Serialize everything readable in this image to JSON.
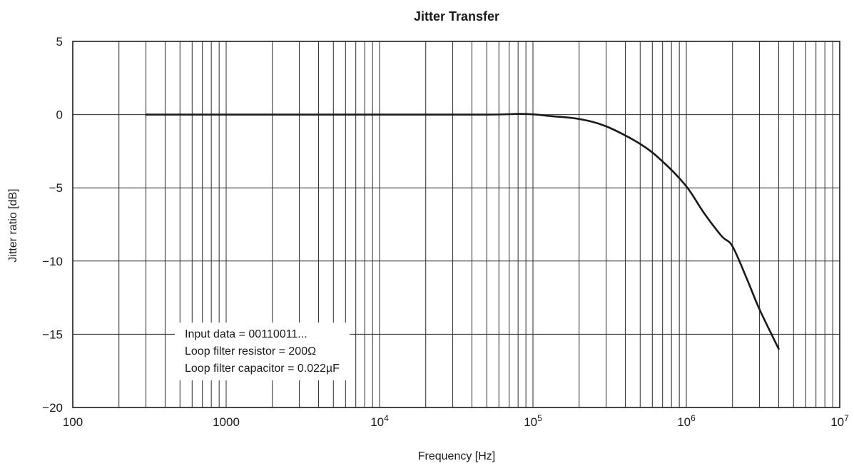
{
  "chart_data": {
    "type": "line",
    "title": "Jitter Transfer",
    "xlabel": "Frequency [Hz]",
    "ylabel": "Jitter ratio [dB]",
    "x_scale": "log",
    "xlim": [
      100,
      10000000
    ],
    "ylim": [
      -20,
      5
    ],
    "grid": true,
    "x_ticks": [
      {
        "value": 100,
        "base": "100",
        "exp": ""
      },
      {
        "value": 1000,
        "base": "1000",
        "exp": ""
      },
      {
        "value": 10000,
        "base": "10",
        "exp": "4"
      },
      {
        "value": 100000,
        "base": "10",
        "exp": "5"
      },
      {
        "value": 1000000,
        "base": "10",
        "exp": "6"
      },
      {
        "value": 10000000,
        "base": "10",
        "exp": "7"
      }
    ],
    "y_ticks": [
      {
        "value": 5,
        "label": "5"
      },
      {
        "value": 0,
        "label": "0"
      },
      {
        "value": -5,
        "label": "−5"
      },
      {
        "value": -10,
        "label": "−10"
      },
      {
        "value": -15,
        "label": "−15"
      },
      {
        "value": -20,
        "label": "−20"
      }
    ],
    "annotation": {
      "lines": [
        "Input data = 00110011...",
        "Loop filter resistor = 200Ω",
        "Loop filter capacitor = 0.022µF"
      ]
    },
    "series": [
      {
        "color": "#1a1a1a",
        "x": [
          300,
          1000,
          10000,
          50000,
          80000,
          100000,
          130000,
          200000,
          300000,
          500000,
          700000,
          1000000,
          1300000,
          1700000,
          2000000,
          2500000,
          3000000,
          4000000
        ],
        "y": [
          0,
          0,
          0,
          0,
          0.05,
          0.02,
          -0.1,
          -0.3,
          -0.8,
          -2.0,
          -3.2,
          -4.9,
          -6.7,
          -8.3,
          -9.0,
          -11.3,
          -13.3,
          -16.0
        ]
      }
    ]
  }
}
